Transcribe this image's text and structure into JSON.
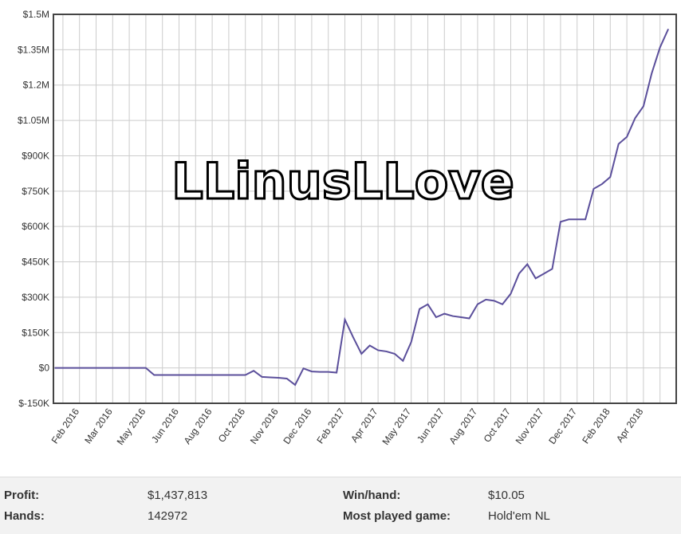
{
  "chart_data": {
    "type": "line",
    "annotation": "LLinusLLove",
    "categories": [
      null,
      null,
      null,
      "Feb 2016",
      null,
      null,
      null,
      "Mar 2016",
      null,
      null,
      null,
      "May 2016",
      null,
      null,
      null,
      "Jun 2016",
      null,
      null,
      null,
      "Aug 2016",
      null,
      null,
      null,
      "Oct 2016",
      null,
      null,
      null,
      "Nov 2016",
      null,
      null,
      null,
      "Dec 2016",
      null,
      null,
      null,
      "Feb 2017",
      null,
      null,
      null,
      "Apr 2017",
      null,
      null,
      null,
      "May 2017",
      null,
      null,
      null,
      "Jun 2017",
      null,
      null,
      null,
      "Aug 2017",
      null,
      null,
      null,
      "Oct 2017",
      null,
      null,
      null,
      "Nov 2017",
      null,
      null,
      null,
      "Dec 2017",
      null,
      null,
      null,
      "Feb 2018",
      null,
      null,
      null,
      "Apr 2018",
      null,
      null,
      null
    ],
    "series": [
      {
        "color": "#5b4f9b",
        "values": [
          0,
          0,
          0,
          0,
          0,
          0,
          0,
          0,
          0,
          0,
          0,
          0,
          -30000,
          -30000,
          -30000,
          -30000,
          -30000,
          -30000,
          -30000,
          -30000,
          -30000,
          -30000,
          -30000,
          -30000,
          -12000,
          -38000,
          -40000,
          -42000,
          -45000,
          -72000,
          -2000,
          -15000,
          -17000,
          -17000,
          -20000,
          205000,
          130000,
          60000,
          95000,
          75000,
          70000,
          60000,
          30000,
          110000,
          250000,
          270000,
          215000,
          230000,
          220000,
          215000,
          210000,
          270000,
          290000,
          285000,
          270000,
          315000,
          400000,
          440000,
          380000,
          400000,
          420000,
          620000,
          630000,
          630000,
          630000,
          760000,
          780000,
          810000,
          950000,
          980000,
          1060000,
          1110000,
          1250000,
          1360000,
          1437813
        ]
      }
    ],
    "ylim": [
      -150000,
      1500000
    ],
    "yticks": [
      {
        "value": -150000,
        "label": "$-150K"
      },
      {
        "value": 0,
        "label": "$0"
      },
      {
        "value": 150000,
        "label": "$150K"
      },
      {
        "value": 300000,
        "label": "$300K"
      },
      {
        "value": 450000,
        "label": "$450K"
      },
      {
        "value": 600000,
        "label": "$600K"
      },
      {
        "value": 750000,
        "label": "$750K"
      },
      {
        "value": 900000,
        "label": "$900K"
      },
      {
        "value": 1050000,
        "label": "$1.05M"
      },
      {
        "value": 1200000,
        "label": "$1.2M"
      },
      {
        "value": 1350000,
        "label": "$1.35M"
      },
      {
        "value": 1500000,
        "label": "$1.5M"
      }
    ],
    "grid": true
  },
  "stats": {
    "rows": [
      [
        "Profit:",
        "$1,437,813",
        "Win/hand:",
        "$10.05"
      ],
      [
        "Hands:",
        "142972",
        "Most played game:",
        "Hold'em NL"
      ]
    ]
  }
}
